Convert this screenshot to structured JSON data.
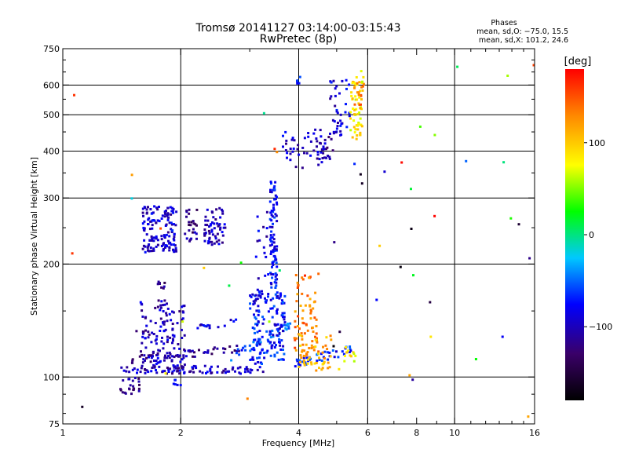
{
  "chart_data": {
    "type": "scatter",
    "title": "Tromsø 20141127 03:14:00-03:15:43",
    "subtitle": "RwPretec (8p)",
    "xlabel": "Frequency [MHz]",
    "ylabel": "Stationary phase Virtual Height [km]",
    "x_scale": "log",
    "y_scale": "log",
    "xlim": [
      1,
      16
    ],
    "ylim": [
      75,
      750
    ],
    "x_ticks": [
      1,
      2,
      4,
      6,
      8,
      10,
      16
    ],
    "x_tick_labels": [
      "1",
      "2",
      "4",
      "6",
      "8",
      "10",
      "16"
    ],
    "x_major_grid": [
      2,
      4,
      6,
      10
    ],
    "y_ticks": [
      75,
      100,
      200,
      300,
      400,
      500,
      600,
      750
    ],
    "y_tick_labels": [
      "75",
      "100",
      "200",
      "300",
      "400",
      "500",
      "600",
      "750"
    ],
    "y_major_grid": [
      100,
      200,
      300,
      400,
      500,
      600
    ],
    "grid": true,
    "phase_box": {
      "title": "Phases",
      "line_o": "mean, sd,O: −75.0, 15.5",
      "line_x": "mean, sd,X: 101.2, 24.6"
    },
    "colorbar": {
      "label": "[deg]",
      "range": [
        -180,
        180
      ],
      "ticks": [
        100,
        0,
        -100
      ],
      "tick_labels": [
        "100",
        "0",
        "−100"
      ],
      "colormap": "rainbow: black at -180, purple, blue, cyan, green, yellow, orange, red at +180",
      "stops": [
        "#000000",
        "#3a0068",
        "#0000ff",
        "#00c8ff",
        "#00ff00",
        "#ffff00",
        "#ff8800",
        "#ff0000"
      ]
    },
    "clusters": [
      {
        "shape": "line",
        "from": [
          1.4,
          105
        ],
        "to": [
          3.3,
          104
        ],
        "phase": -100,
        "n": 90
      },
      {
        "shape": "line",
        "from": [
          1.5,
          111
        ],
        "to": [
          2.8,
          119
        ],
        "phase": -110,
        "n": 55
      },
      {
        "shape": "line",
        "from": [
          2.7,
          113
        ],
        "to": [
          3.8,
          138
        ],
        "phase": -60,
        "n": 40
      },
      {
        "shape": "line",
        "from": [
          3.8,
          108
        ],
        "to": [
          5.4,
          118
        ],
        "phase": -70,
        "n": 40
      },
      {
        "shape": "line",
        "from": [
          2.2,
          137
        ],
        "to": [
          2.8,
          139
        ],
        "phase": -90,
        "n": 14
      },
      {
        "shape": "line",
        "from": [
          1.55,
          130
        ],
        "to": [
          1.95,
          130
        ],
        "phase": -105,
        "n": 14
      },
      {
        "shape": "line",
        "from": [
          1.85,
          97
        ],
        "to": [
          2.0,
          96
        ],
        "phase": -95,
        "n": 6
      },
      {
        "shape": "box",
        "x": [
          1.4,
          1.58
        ],
        "y": [
          90,
          100
        ],
        "phase": -115,
        "n": 25
      },
      {
        "shape": "box",
        "x": [
          1.58,
          2.05
        ],
        "y": [
          105,
          160
        ],
        "phase": -100,
        "n": 120
      },
      {
        "shape": "box",
        "x": [
          1.74,
          1.82
        ],
        "y": [
          172,
          182
        ],
        "phase": -125,
        "n": 8
      },
      {
        "shape": "box",
        "x": [
          1.6,
          1.95
        ],
        "y": [
          215,
          285
        ],
        "phase": -95,
        "n": 140
      },
      {
        "shape": "box",
        "x": [
          2.05,
          2.2
        ],
        "y": [
          230,
          280
        ],
        "phase": -115,
        "n": 25
      },
      {
        "shape": "box",
        "x": [
          2.3,
          2.6
        ],
        "y": [
          225,
          280
        ],
        "phase": -100,
        "n": 60
      },
      {
        "shape": "box",
        "x": [
          3.0,
          3.7
        ],
        "y": [
          108,
          170
        ],
        "phase": -75,
        "n": 150
      },
      {
        "shape": "box",
        "x": [
          3.38,
          3.52
        ],
        "y": [
          170,
          335
        ],
        "phase": -80,
        "n": 90
      },
      {
        "shape": "box",
        "x": [
          3.1,
          3.35
        ],
        "y": [
          150,
          270
        ],
        "phase": -95,
        "n": 20
      },
      {
        "shape": "box",
        "x": [
          3.9,
          4.5
        ],
        "y": [
          112,
          190
        ],
        "phase": 135,
        "n": 75
      },
      {
        "shape": "box",
        "x": [
          4.0,
          4.9
        ],
        "y": [
          104,
          130
        ],
        "phase": 110,
        "n": 45
      },
      {
        "shape": "box",
        "x": [
          5.2,
          5.6
        ],
        "y": [
          110,
          120
        ],
        "phase": 85,
        "n": 12
      },
      {
        "shape": "box",
        "x": [
          3.6,
          4.6
        ],
        "y": [
          360,
          460
        ],
        "phase": -95,
        "n": 40
      },
      {
        "shape": "box",
        "x": [
          4.4,
          4.9
        ],
        "y": [
          380,
          440
        ],
        "phase": -105,
        "n": 25
      },
      {
        "shape": "box",
        "x": [
          4.8,
          5.4
        ],
        "y": [
          430,
          620
        ],
        "phase": -90,
        "n": 40
      },
      {
        "shape": "box",
        "x": [
          3.95,
          4.05
        ],
        "y": [
          600,
          640
        ],
        "phase": -80,
        "n": 6
      },
      {
        "shape": "box",
        "x": [
          5.4,
          5.85
        ],
        "y": [
          430,
          660
        ],
        "phase": 85,
        "n": 60
      },
      {
        "shape": "box",
        "x": [
          5.55,
          5.9
        ],
        "y": [
          500,
          650
        ],
        "phase": 130,
        "n": 15
      },
      {
        "shape": "box",
        "x": [
          1.0,
          16.0
        ],
        "y": [
          78,
          700
        ],
        "phase": "mixed",
        "n": 55
      }
    ]
  }
}
